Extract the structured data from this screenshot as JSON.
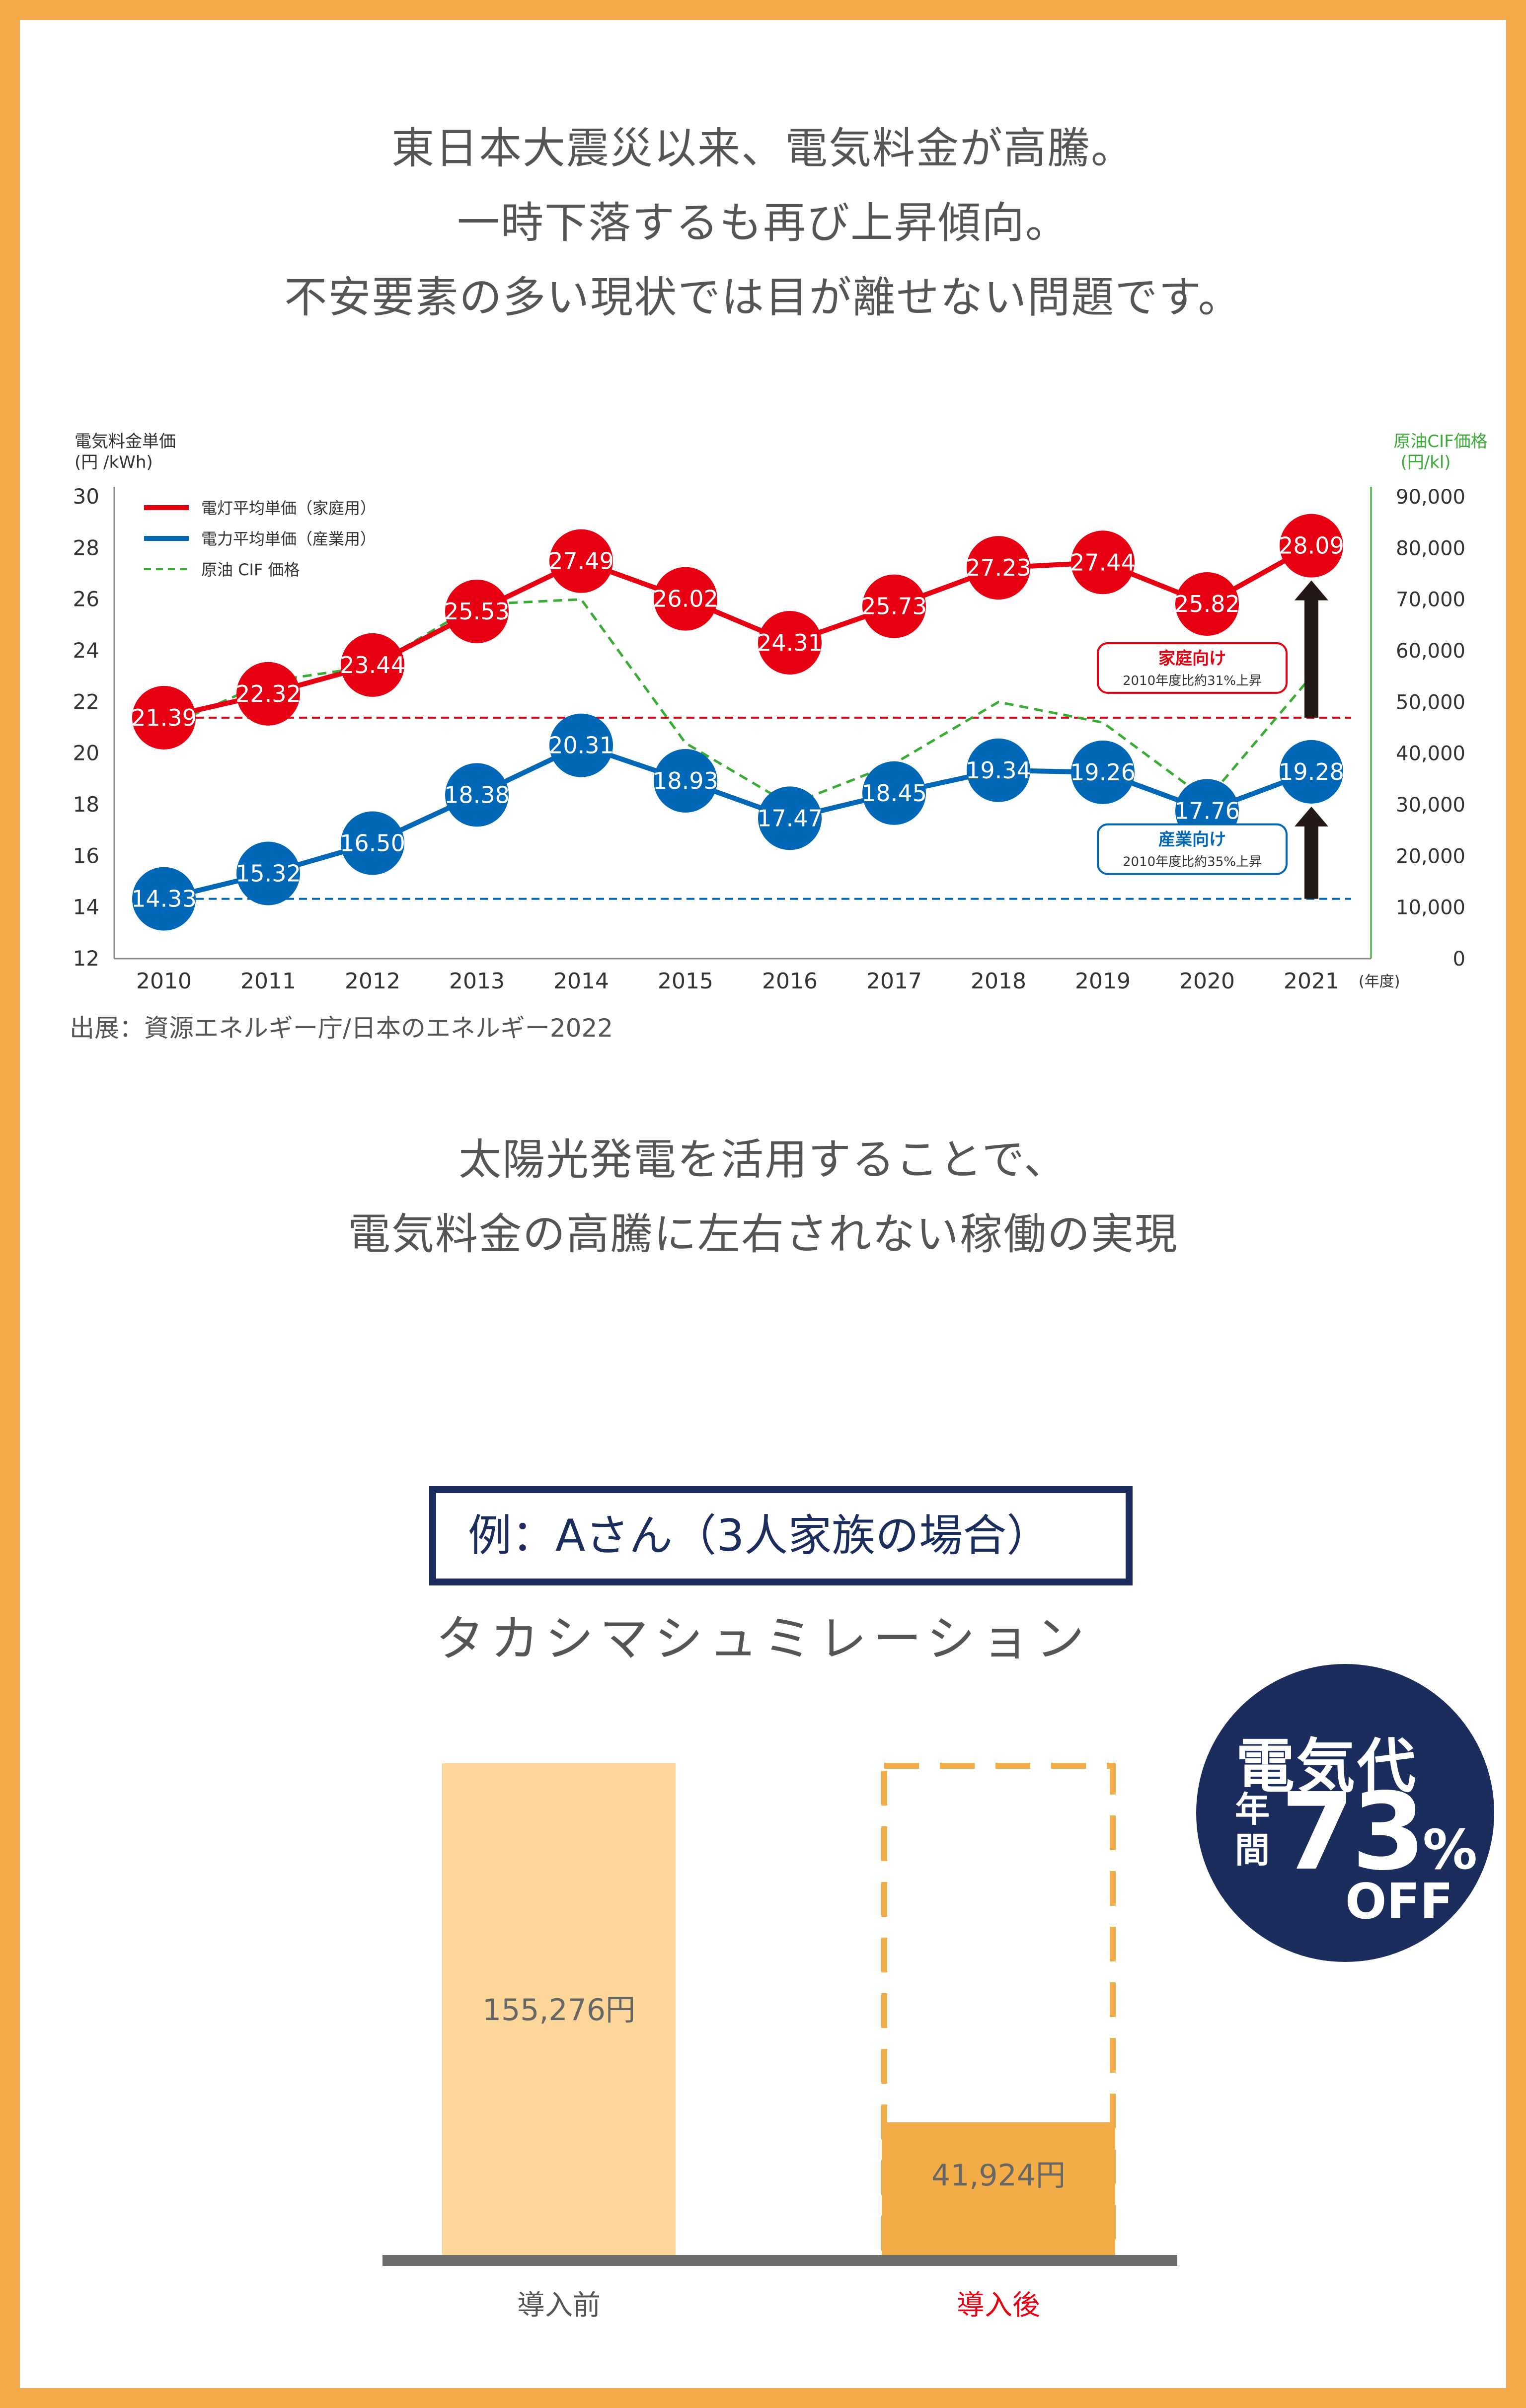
{
  "intro": {
    "lines": [
      "東日本大震災以来、電気料金が高騰。",
      "一時下落するも再び上昇傾向。",
      "不安要素の多い現状では目が離せない問題です。"
    ]
  },
  "source_note": "出展：資源エネルギー庁/日本のエネルギー2022",
  "solar": {
    "lines": [
      "太陽光発電を活用することで、",
      "電気料金の高騰に左右されない稼働の実現"
    ]
  },
  "example": {
    "label": "例：Aさん（3人家族の場合）",
    "title": "タカシマシュミレーション"
  },
  "badge": {
    "line1": "電気代",
    "period": "年間",
    "percent": "73",
    "percent_sign": "%",
    "off": "OFF"
  },
  "colors": {
    "border": "#f5a94a",
    "red": "#e60012",
    "blue": "#0068b7",
    "green": "#3aab35",
    "navy": "#1b2d5c",
    "bar_before": "#fdd699",
    "bar_after": "#f3ad48"
  },
  "chart_data": [
    {
      "type": "line",
      "y_label": [
        "電気料金単価",
        "(円 /kWh)"
      ],
      "y2_label": [
        "原油CIF価格",
        "(円/kl)"
      ],
      "x_unit": "(年度)",
      "x": [
        "2010",
        "2011",
        "2012",
        "2013",
        "2014",
        "2015",
        "2016",
        "2017",
        "2018",
        "2019",
        "2020",
        "2021"
      ],
      "ylim": [
        12,
        30
      ],
      "y_ticks": [
        "12",
        "14",
        "16",
        "18",
        "20",
        "22",
        "24",
        "26",
        "28",
        "30"
      ],
      "y2lim": [
        0,
        90000
      ],
      "y2_ticks": [
        "0",
        "10,000",
        "20,000",
        "30,000",
        "40,000",
        "50,000",
        "60,000",
        "70,000",
        "80,000",
        "90,000"
      ],
      "series": [
        {
          "name": "電灯平均単価（家庭用）",
          "axis": "left",
          "style": "solid",
          "color": "#e60012",
          "values": [
            21.39,
            22.32,
            23.44,
            25.53,
            27.49,
            26.02,
            24.31,
            25.73,
            27.23,
            27.44,
            25.82,
            28.09
          ],
          "labels": [
            "21.39",
            "22.32",
            "23.44",
            "25.53",
            "27.49",
            "26.02",
            "24.31",
            "25.73",
            "27.23",
            "27.44",
            "25.82",
            "28.09"
          ]
        },
        {
          "name": "電力平均単価（産業用）",
          "axis": "left",
          "style": "solid",
          "color": "#0068b7",
          "values": [
            14.33,
            15.32,
            16.5,
            18.38,
            20.31,
            18.93,
            17.47,
            18.45,
            19.34,
            19.26,
            17.76,
            19.28
          ],
          "labels": [
            "14.33",
            "15.32",
            "16.50",
            "18.38",
            "20.31",
            "18.93",
            "17.47",
            "18.45",
            "19.34",
            "19.26",
            "17.76",
            "19.28"
          ]
        },
        {
          "name": "原油 CIF 価格",
          "axis": "right",
          "style": "dashed",
          "color": "#3aab35",
          "values": [
            45000,
            54000,
            57000,
            69000,
            70000,
            42000,
            30000,
            38000,
            50000,
            46000,
            31000,
            55000
          ]
        }
      ],
      "reference_lines": [
        {
          "axis": "left",
          "value": 21.39,
          "color": "#e60012"
        },
        {
          "axis": "left",
          "value": 14.33,
          "color": "#0068b7"
        }
      ],
      "annotations": [
        {
          "title": "家庭向け",
          "text": "2010年度比約31%上昇",
          "color": "#e60012"
        },
        {
          "title": "産業向け",
          "text": "2010年度比約35%上昇",
          "color": "#0068b7"
        }
      ]
    },
    {
      "type": "bar",
      "categories": [
        "導入前",
        "導入後"
      ],
      "values": [
        155276,
        41924
      ],
      "value_labels": [
        "155,276円",
        "41,924円"
      ],
      "ylim": [
        0,
        155276
      ],
      "category_colors": [
        "#555555",
        "#e60012"
      ]
    }
  ]
}
